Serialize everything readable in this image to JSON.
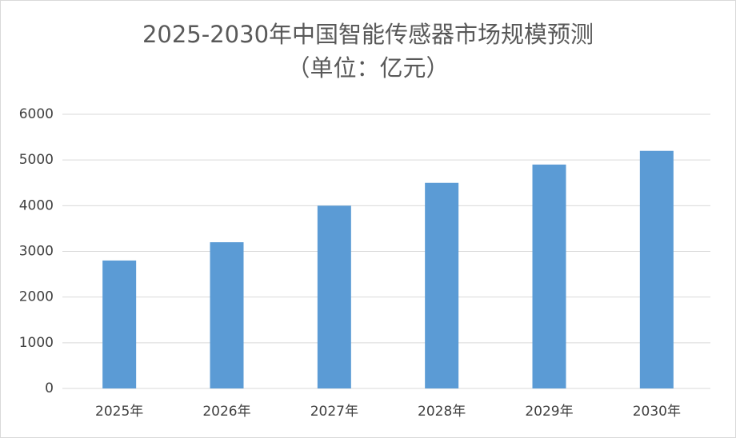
{
  "chart_data": {
    "type": "bar",
    "title": "2025-2030年中国智能传感器市场规模预测",
    "subtitle": "（单位：亿元）",
    "categories": [
      "2025年",
      "2026年",
      "2027年",
      "2028年",
      "2029年",
      "2030年"
    ],
    "values": [
      2800,
      3200,
      4000,
      4500,
      4900,
      5200
    ],
    "color": "#5b9bd5",
    "ylim": [
      0,
      6000
    ],
    "yticks": [
      0,
      1000,
      2000,
      3000,
      4000,
      5000,
      6000
    ],
    "grid": true
  }
}
